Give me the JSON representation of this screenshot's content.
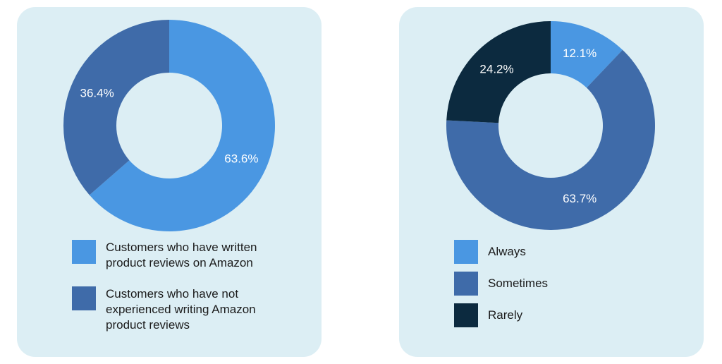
{
  "chart_data": [
    {
      "type": "pie",
      "donut": true,
      "title": "",
      "slices": [
        {
          "label": "Customers who have written product reviews on Amazon",
          "value": 63.6,
          "display": "63.6%",
          "color": "#4a97e2"
        },
        {
          "label": "Customers who have not experienced writing Amazon product reviews",
          "value": 36.4,
          "display": "36.4%",
          "color": "#3f6ba9"
        }
      ],
      "legend_position": "bottom"
    },
    {
      "type": "pie",
      "donut": true,
      "title": "",
      "slices": [
        {
          "label": "Always",
          "value": 12.1,
          "display": "12.1%",
          "color": "#4a97e2"
        },
        {
          "label": "Sometimes",
          "value": 63.7,
          "display": "63.7%",
          "color": "#3f6ba9"
        },
        {
          "label": "Rarely",
          "value": 24.2,
          "display": "24.2%",
          "color": "#0c2a3f"
        }
      ],
      "legend_position": "bottom"
    }
  ]
}
